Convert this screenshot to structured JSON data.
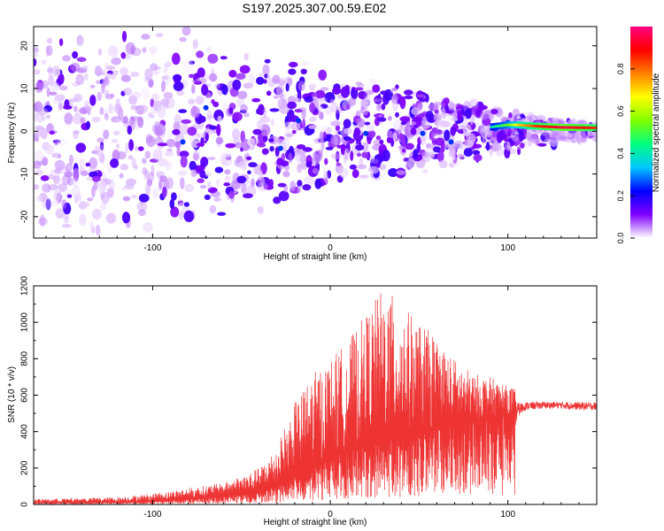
{
  "title": "S197.2025.307.00.59.E02",
  "chart_data": [
    {
      "type": "heatmap",
      "xlabel": "Height of straight line (km)",
      "ylabel": "Frequency (Hz)",
      "xlim": [
        -167,
        150
      ],
      "ylim": [
        -25,
        24.5
      ],
      "xticks": [
        -100,
        0,
        100
      ],
      "yticks": [
        -20,
        -10,
        0,
        10,
        20
      ],
      "colorbar": {
        "label": "Normalized spectral amplitude",
        "range": [
          0,
          1
        ],
        "ticks": [
          "0.0",
          "0.2",
          "0.4",
          "0.6",
          "0.8"
        ],
        "colors": [
          "#ffffff",
          "#8000ff",
          "#0000ff",
          "#00c8ff",
          "#00ff80",
          "#80ff00",
          "#ffff00",
          "#ff8000",
          "#ff0000",
          "#ff0080"
        ]
      },
      "ridge": {
        "x": [
          90,
          100,
          105,
          115,
          130,
          150
        ],
        "frequency": [
          1,
          1.5,
          1.5,
          1.2,
          0.9,
          0.8
        ],
        "amplitude": [
          0.4,
          0.55,
          0.7,
          0.85,
          0.95,
          0.85
        ]
      },
      "scatter_extent": {
        "noise_floor_until": -80,
        "max_abs_frequency": 24
      }
    },
    {
      "type": "line",
      "xlabel": "Height of straight line (km)",
      "ylabel": "SNR (10 * v/v)",
      "xlim": [
        -167,
        150
      ],
      "ylim": [
        0,
        1200
      ],
      "xticks": [
        -100,
        0,
        100
      ],
      "yticks": [
        0,
        200,
        400,
        600,
        800,
        1000,
        1200
      ],
      "color": "#ee3333",
      "envelope": {
        "x": [
          -167,
          -120,
          -100,
          -80,
          -60,
          -50,
          -40,
          -30,
          -20,
          -10,
          0,
          10,
          20,
          30,
          40,
          50,
          60,
          70,
          80,
          90,
          100,
          104,
          106,
          110,
          120,
          130,
          140,
          150
        ],
        "base": [
          10,
          12,
          18,
          30,
          45,
          55,
          70,
          100,
          150,
          200,
          250,
          300,
          330,
          360,
          380,
          400,
          420,
          440,
          460,
          480,
          500,
          500,
          520,
          540,
          545,
          545,
          540,
          540
        ],
        "peak": [
          30,
          40,
          60,
          90,
          120,
          160,
          200,
          320,
          560,
          720,
          800,
          900,
          1050,
          1200,
          1100,
          1000,
          920,
          800,
          720,
          700,
          650,
          640,
          590,
          580,
          580,
          580,
          580,
          580
        ]
      }
    }
  ]
}
